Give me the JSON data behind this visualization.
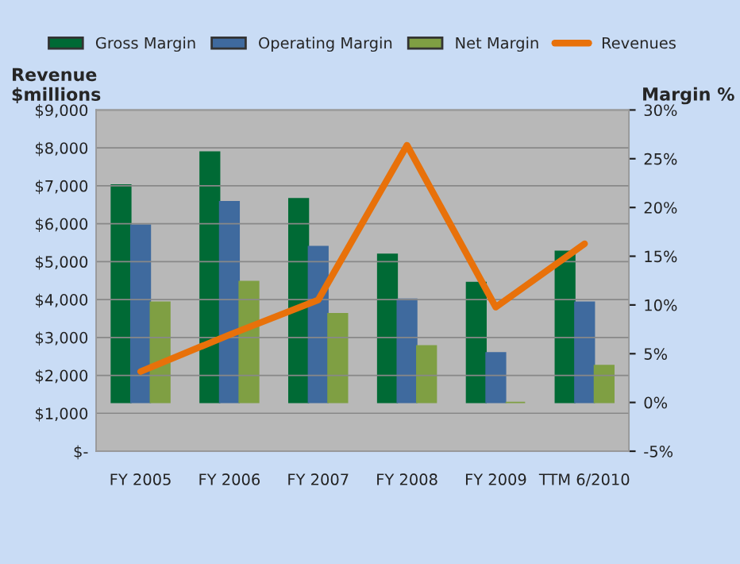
{
  "chart_data": {
    "type": "bar",
    "categories": [
      "FY 2005",
      "FY 2006",
      "FY 2007",
      "FY 2008",
      "FY 2009",
      "TTM 6/2010"
    ],
    "series": [
      {
        "name": "Gross Margin",
        "color": "#006a35",
        "axis": "y2",
        "values": [
          22.3,
          25.7,
          20.9,
          15.2,
          12.3,
          15.5
        ]
      },
      {
        "name": "Operating Margin",
        "color": "#3f6a9e",
        "axis": "y2",
        "values": [
          18.2,
          20.6,
          16.0,
          10.6,
          5.1,
          10.3
        ]
      },
      {
        "name": "Net Margin",
        "color": "#7f9f43",
        "axis": "y2",
        "values": [
          10.3,
          12.4,
          9.1,
          5.8,
          0.0,
          3.8
        ]
      },
      {
        "name": "Revenues",
        "type": "line",
        "color": "#e8710a",
        "values": [
          2100,
          3070,
          3990,
          8070,
          3800,
          5470
        ]
      }
    ],
    "ylabel": "Revenue\n$millions",
    "y2label": "Margin %",
    "ylim": [
      0,
      9000
    ],
    "yticks": [
      {
        "value": 0,
        "label": "$-"
      },
      {
        "value": 1000,
        "label": "$1,000"
      },
      {
        "value": 2000,
        "label": "$2,000"
      },
      {
        "value": 3000,
        "label": "$3,000"
      },
      {
        "value": 4000,
        "label": "$4,000"
      },
      {
        "value": 5000,
        "label": "$5,000"
      },
      {
        "value": 6000,
        "label": "$6,000"
      },
      {
        "value": 7000,
        "label": "$7,000"
      },
      {
        "value": 8000,
        "label": "$8,000"
      },
      {
        "value": 9000,
        "label": "$9,000"
      }
    ],
    "y2lim": [
      -5,
      30
    ],
    "y2ticks": [
      {
        "value": -5,
        "label": "-5%"
      },
      {
        "value": 0,
        "label": "0%"
      },
      {
        "value": 5,
        "label": "5%"
      },
      {
        "value": 10,
        "label": "10%"
      },
      {
        "value": 15,
        "label": "15%"
      },
      {
        "value": 20,
        "label": "20%"
      },
      {
        "value": 25,
        "label": "25%"
      },
      {
        "value": 30,
        "label": "30%"
      }
    ],
    "grid": "y",
    "legend": "top"
  }
}
